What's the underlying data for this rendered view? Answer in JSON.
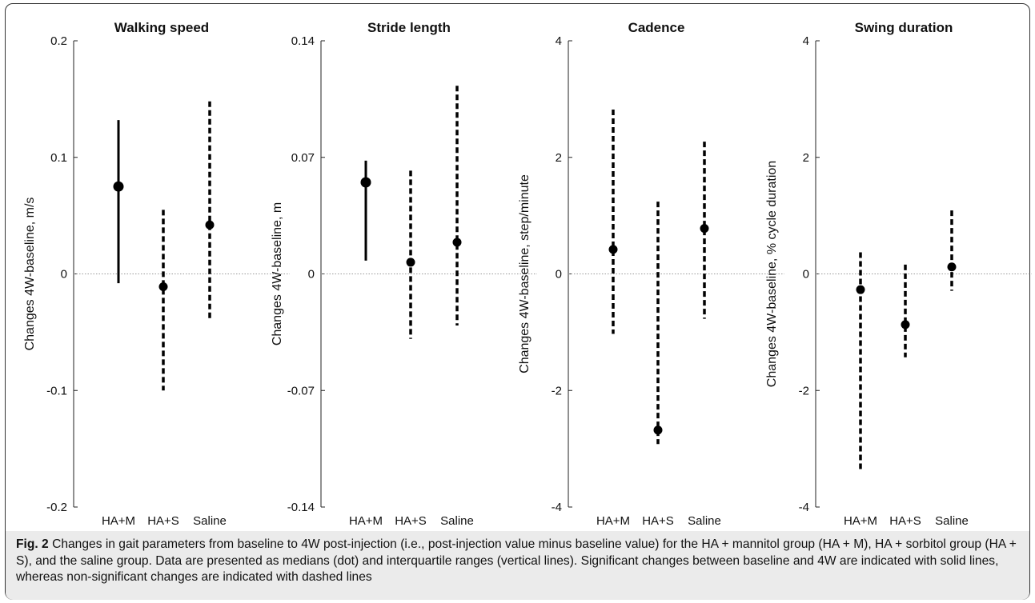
{
  "caption": {
    "label": "Fig. 2",
    "text": "Changes in gait parameters from baseline to 4W post-injection (i.e., post-injection value minus baseline value) for the HA + mannitol group (HA + M), HA + sorbitol group (HA + S), and the saline group. Data are presented as medians (dot) and interquartile ranges (vertical lines). Significant changes between baseline and 4W are indicated with solid lines, whereas non-significant changes are indicated with dashed lines"
  },
  "chart_data": [
    {
      "type": "scatter",
      "title": "Walking speed",
      "ylabel": "Changes 4W-baseline, m/s",
      "ylim": [
        -0.2,
        0.2
      ],
      "yticks": [
        -0.2,
        -0.1,
        0,
        0.1,
        0.2
      ],
      "ytick_labels": [
        "-0.2",
        "-0.1",
        "0",
        "0.1",
        "0.2"
      ],
      "categories": [
        "HA+M",
        "HA+S",
        "Saline"
      ],
      "median": [
        0.075,
        -0.011,
        0.042
      ],
      "q1": [
        -0.008,
        -0.1,
        -0.04
      ],
      "q3": [
        0.132,
        0.055,
        0.148
      ],
      "significant": [
        true,
        false,
        false
      ],
      "zero_line": true
    },
    {
      "type": "scatter",
      "title": "Stride length",
      "ylabel": "Changes 4W-baseline, m",
      "ylim": [
        -0.14,
        0.14
      ],
      "yticks": [
        -0.14,
        -0.07,
        0,
        0.07,
        0.14
      ],
      "ytick_labels": [
        "-0.14",
        "-0.07",
        "0",
        "0.07",
        "0.14"
      ],
      "categories": [
        "HA+M",
        "HA+S",
        "Saline"
      ],
      "median": [
        0.055,
        0.007,
        0.019
      ],
      "q1": [
        0.008,
        -0.039,
        -0.031
      ],
      "q3": [
        0.068,
        0.062,
        0.113
      ],
      "significant": [
        true,
        false,
        false
      ],
      "zero_line": true
    },
    {
      "type": "scatter",
      "title": "Cadence",
      "ylabel": "Changes 4W-baseline, step/minute",
      "ylim": [
        -4,
        4
      ],
      "yticks": [
        -4,
        -2,
        0,
        2,
        4
      ],
      "ytick_labels": [
        "-4",
        "-2",
        "0",
        "2",
        "4"
      ],
      "categories": [
        "HA+M",
        "HA+S",
        "Saline"
      ],
      "median": [
        0.42,
        -2.68,
        0.78
      ],
      "q1": [
        -1.03,
        -2.92,
        -0.77
      ],
      "q3": [
        2.82,
        1.24,
        2.27
      ],
      "significant": [
        false,
        false,
        false
      ],
      "zero_line": true
    },
    {
      "type": "scatter",
      "title": "Swing duration",
      "ylabel": "Changes 4W-baseline, % cycle duration",
      "ylim": [
        -4,
        4
      ],
      "yticks": [
        -4,
        -2,
        0,
        2,
        4
      ],
      "ytick_labels": [
        "-4",
        "-2",
        "0",
        "2",
        "4"
      ],
      "categories": [
        "HA+M",
        "HA+S",
        "Saline"
      ],
      "median": [
        -0.27,
        -0.87,
        0.12
      ],
      "q1": [
        -3.35,
        -1.43,
        -0.29
      ],
      "q3": [
        0.37,
        0.16,
        1.09
      ],
      "significant": [
        false,
        false,
        false
      ],
      "zero_line": true
    }
  ]
}
